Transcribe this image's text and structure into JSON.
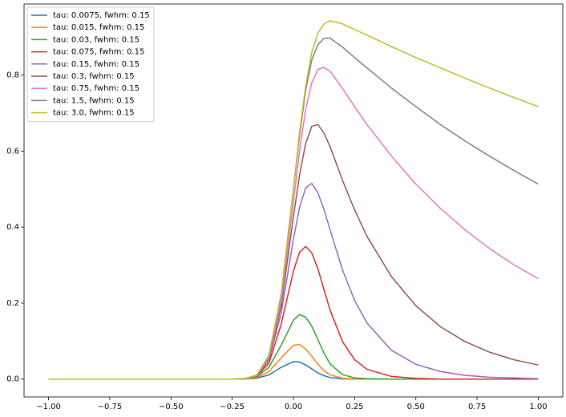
{
  "chart_data": {
    "type": "line",
    "x": [
      -1,
      -0.25,
      -0.2,
      -0.15,
      -0.1,
      -0.05,
      0,
      0.025,
      0.05,
      0.075,
      0.1,
      0.125,
      0.15,
      0.2,
      0.25,
      0.3,
      0.4,
      0.5,
      0.6,
      0.7,
      0.8,
      0.9,
      1.0
    ],
    "series": [
      {
        "name": "tau: 0.0075, fwhm: 0.15",
        "color": "#1f77b4",
        "values": [
          0,
          0,
          0.0002,
          0.0023,
          0.011,
          0.031,
          0.046,
          0.045,
          0.037,
          0.027,
          0.016,
          0.009,
          0.004,
          0.0005,
          0,
          0,
          0,
          0,
          0,
          0,
          0,
          0,
          0
        ]
      },
      {
        "name": "tau: 0.015, fwhm: 0.15",
        "color": "#ff7f0e",
        "values": [
          0,
          0,
          0.0004,
          0.0038,
          0.02,
          0.056,
          0.089,
          0.091,
          0.079,
          0.06,
          0.039,
          0.022,
          0.011,
          0.002,
          0,
          0,
          0,
          0,
          0,
          0,
          0,
          0,
          0
        ]
      },
      {
        "name": "tau: 0.03, fwhm: 0.15",
        "color": "#2ca02c",
        "values": [
          0,
          0,
          0.0008,
          0.0065,
          0.031,
          0.089,
          0.155,
          0.17,
          0.163,
          0.139,
          0.104,
          0.068,
          0.04,
          0.012,
          0.003,
          0.001,
          0,
          0,
          0,
          0,
          0,
          0,
          0
        ]
      },
      {
        "name": "tau: 0.075, fwhm: 0.15",
        "color": "#d62728",
        "values": [
          0,
          0,
          0.0005,
          0.0074,
          0.042,
          0.144,
          0.284,
          0.334,
          0.349,
          0.332,
          0.29,
          0.235,
          0.181,
          0.099,
          0.051,
          0.026,
          0.007,
          0.002,
          0,
          0,
          0,
          0,
          0
        ]
      },
      {
        "name": "tau: 0.15, fwhm: 0.15",
        "color": "#9467bd",
        "values": [
          0,
          0,
          0.0003,
          0.008,
          0.05,
          0.173,
          0.368,
          0.452,
          0.503,
          0.515,
          0.49,
          0.446,
          0.392,
          0.288,
          0.207,
          0.148,
          0.076,
          0.039,
          0.02,
          0.01,
          0.005,
          0.003,
          0.001
        ]
      },
      {
        "name": "tau: 0.3, fwhm: 0.15",
        "color": "#8c564b",
        "values": [
          0,
          0,
          0.0006,
          0.0086,
          0.054,
          0.192,
          0.427,
          0.537,
          0.62,
          0.665,
          0.67,
          0.647,
          0.611,
          0.524,
          0.445,
          0.376,
          0.27,
          0.193,
          0.138,
          0.099,
          0.071,
          0.051,
          0.037
        ]
      },
      {
        "name": "tau: 0.75, fwhm: 0.15",
        "color": "#e377c2",
        "values": [
          0,
          0,
          0.001,
          0.009,
          0.056,
          0.205,
          0.466,
          0.6,
          0.71,
          0.78,
          0.815,
          0.82,
          0.81,
          0.765,
          0.717,
          0.67,
          0.587,
          0.513,
          0.449,
          0.393,
          0.344,
          0.301,
          0.264
        ]
      },
      {
        "name": "tau: 1.5, fwhm: 0.15",
        "color": "#7f7f7f",
        "values": [
          0,
          0,
          0.001,
          0.01,
          0.062,
          0.223,
          0.5,
          0.64,
          0.76,
          0.84,
          0.88,
          0.897,
          0.897,
          0.874,
          0.846,
          0.819,
          0.766,
          0.717,
          0.67,
          0.627,
          0.587,
          0.549,
          0.513
        ]
      },
      {
        "name": "tau: 3.0, fwhm: 0.15",
        "color": "#bcbd22",
        "values": [
          0,
          0,
          0.001,
          0.01,
          0.06,
          0.22,
          0.5,
          0.65,
          0.77,
          0.86,
          0.91,
          0.935,
          0.943,
          0.935,
          0.92,
          0.905,
          0.875,
          0.846,
          0.819,
          0.792,
          0.766,
          0.741,
          0.717
        ]
      }
    ],
    "xlim": [
      -1.1,
      1.1
    ],
    "ylim": [
      -0.047,
      0.987
    ],
    "xticks": [
      {
        "value": -1,
        "label": "−1.00"
      },
      {
        "value": -0.75,
        "label": "−0.75"
      },
      {
        "value": -0.5,
        "label": "−0.50"
      },
      {
        "value": -0.25,
        "label": "−0.25"
      },
      {
        "value": 0,
        "label": "0.00"
      },
      {
        "value": 0.25,
        "label": "0.25"
      },
      {
        "value": 0.5,
        "label": "0.50"
      },
      {
        "value": 0.75,
        "label": "0.75"
      },
      {
        "value": 1,
        "label": "1.00"
      }
    ],
    "yticks": [
      {
        "value": 0,
        "label": "0.0"
      },
      0.2,
      0.4,
      0.6,
      0.8
    ],
    "grid": false,
    "legend": "upper-left"
  }
}
